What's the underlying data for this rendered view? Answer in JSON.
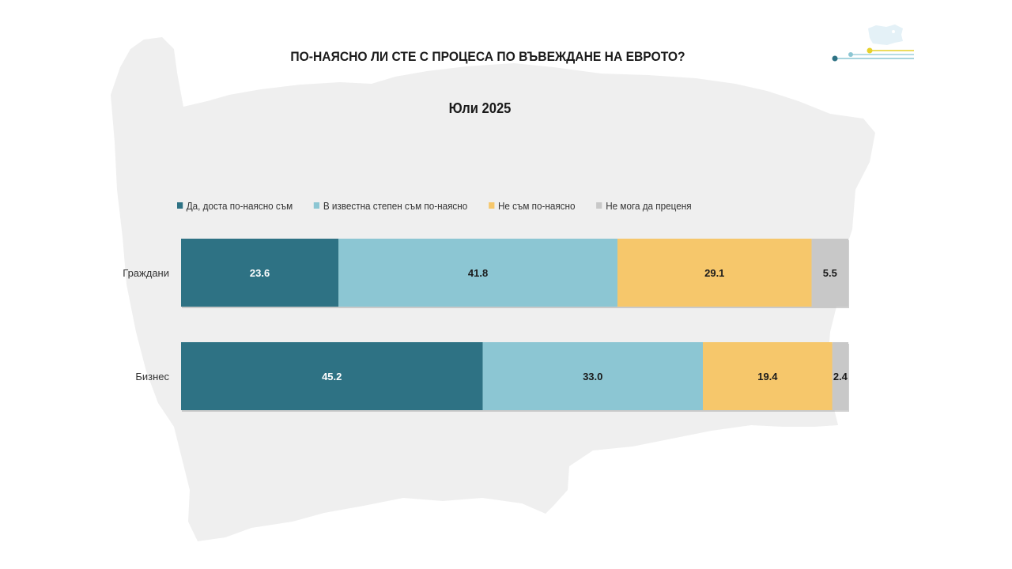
{
  "title": "ПО-НАЯСНО ЛИ СТЕ С ПРОЦЕСА ПО ВЪВЕЖДАНЕ НА ЕВРОТО?",
  "subtitle": "Юли 2025",
  "colors": {
    "series": [
      "#2e7284",
      "#8cc6d3",
      "#f6c76b",
      "#c8c8c8"
    ],
    "background_map": "#efefef"
  },
  "legend": [
    "Да, доста по-наясно съм",
    "В известна степен съм по-наясно",
    "Не съм по-наясно",
    "Не мога да преценя"
  ],
  "chart_data": {
    "type": "bar",
    "orientation": "horizontal",
    "stacked": true,
    "categories": [
      "Граждани",
      "Бизнес"
    ],
    "series": [
      {
        "name": "Да, доста по-наясно съм",
        "values": [
          23.6,
          45.2
        ]
      },
      {
        "name": "В известна степен съм по-наясно",
        "values": [
          41.8,
          33.0
        ]
      },
      {
        "name": "Не съм по-наясно",
        "values": [
          29.1,
          19.4
        ]
      },
      {
        "name": "Не мога да преценя",
        "values": [
          5.5,
          2.4
        ]
      }
    ],
    "xlim": [
      0,
      100
    ],
    "grid": false,
    "legend_position": "top"
  }
}
